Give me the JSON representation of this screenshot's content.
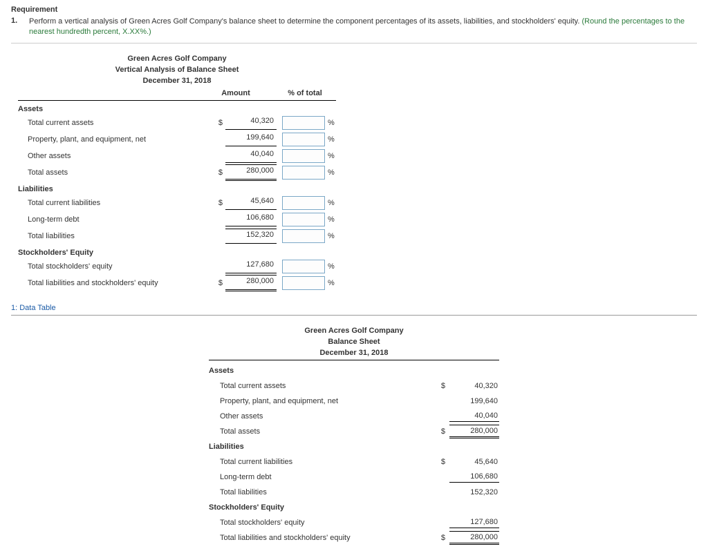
{
  "requirement": {
    "heading": "Requirement",
    "number": "1.",
    "text": "Perform a vertical analysis of Green Acres Golf Company's balance sheet to determine the component percentages of its assets, liabilities, and stockholders' equity.",
    "hint": "(Round the percentages to the nearest hundredth percent, X.XX%.)"
  },
  "worksheet": {
    "title_company": "Green Acres Golf Company",
    "title_report": "Vertical Analysis of Balance Sheet",
    "title_date": "December 31, 2018",
    "col_amount": "Amount",
    "col_pct": "% of total",
    "sections": {
      "assets": "Assets",
      "liabilities": "Liabilities",
      "equity": "Stockholders' Equity"
    },
    "rows": {
      "tca": {
        "label": "Total current assets",
        "dollar": "$",
        "amount": "40,320",
        "unit": "%"
      },
      "ppe": {
        "label": "Property, plant, and equipment, net",
        "dollar": "",
        "amount": "199,640",
        "unit": "%"
      },
      "oa": {
        "label": "Other assets",
        "dollar": "",
        "amount": "40,040",
        "unit": "%"
      },
      "ta": {
        "label": "Total assets",
        "dollar": "$",
        "amount": "280,000",
        "unit": "%"
      },
      "tcl": {
        "label": "Total current liabilities",
        "dollar": "$",
        "amount": "45,640",
        "unit": "%"
      },
      "ltd": {
        "label": "Long-term debt",
        "dollar": "",
        "amount": "106,680",
        "unit": "%"
      },
      "tl": {
        "label": "Total liabilities",
        "dollar": "",
        "amount": "152,320",
        "unit": "%"
      },
      "tse": {
        "label": "Total stockholders' equity",
        "dollar": "",
        "amount": "127,680",
        "unit": "%"
      },
      "tlse": {
        "label": "Total liabilities and stockholders' equity",
        "dollar": "$",
        "amount": "280,000",
        "unit": "%"
      }
    }
  },
  "data_table": {
    "link_label": "1: Data Table",
    "title_company": "Green Acres Golf Company",
    "title_report": "Balance Sheet",
    "title_date": "December 31, 2018",
    "sections": {
      "assets": "Assets",
      "liabilities": "Liabilities",
      "equity": "Stockholders' Equity"
    },
    "rows": {
      "tca": {
        "label": "Total current assets",
        "dollar": "$",
        "amount": "40,320"
      },
      "ppe": {
        "label": "Property, plant, and equipment, net",
        "dollar": "",
        "amount": "199,640"
      },
      "oa": {
        "label": "Other assets",
        "dollar": "",
        "amount": "40,040"
      },
      "ta": {
        "label": "Total assets",
        "dollar": "$",
        "amount": "280,000"
      },
      "tcl": {
        "label": "Total current liabilities",
        "dollar": "$",
        "amount": "45,640"
      },
      "ltd": {
        "label": "Long-term debt",
        "dollar": "",
        "amount": "106,680"
      },
      "tl": {
        "label": "Total liabilities",
        "dollar": "",
        "amount": "152,320"
      },
      "tse": {
        "label": "Total stockholders' equity",
        "dollar": "",
        "amount": "127,680"
      },
      "tlse": {
        "label": "Total liabilities and stockholders' equity",
        "dollar": "$",
        "amount": "280,000"
      }
    }
  }
}
